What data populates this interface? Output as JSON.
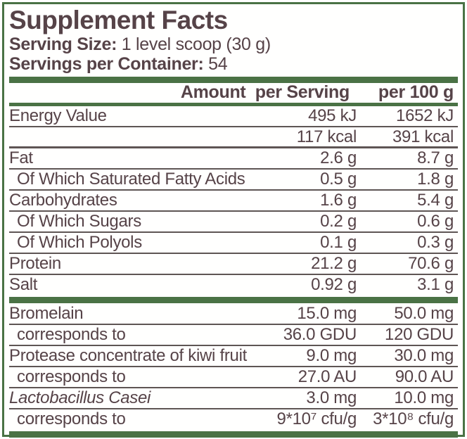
{
  "title": "Supplement Facts",
  "serving": {
    "size_label": "Serving Size:",
    "size_value": " 1 level scoop (30 g)",
    "container_label": "Servings per Container:",
    "container_value": " 54"
  },
  "table": {
    "header": {
      "col1": "Amount  per Serving",
      "col2": "per 100 g"
    },
    "nutrients": [
      {
        "name": "Energy Value",
        "per_serving": "495 kJ",
        "per_100g": "1652 kJ",
        "indent": false,
        "italic": false,
        "sep": "thin"
      },
      {
        "name": "",
        "per_serving": "117 kcal",
        "per_100g": "391 kcal",
        "indent": false,
        "italic": false,
        "sep": "thick"
      },
      {
        "name": "Fat",
        "per_serving": "2.6 g",
        "per_100g": "8.7 g",
        "indent": false,
        "italic": false,
        "sep": "thin"
      },
      {
        "name": "Of Which Saturated Fatty Acids",
        "per_serving": "0.5 g",
        "per_100g": "1.8 g",
        "indent": true,
        "italic": false,
        "sep": "thin"
      },
      {
        "name": "Carbohydrates",
        "per_serving": "1.6 g",
        "per_100g": "5.4 g",
        "indent": false,
        "italic": false,
        "sep": "thin"
      },
      {
        "name": "Of Which Sugars",
        "per_serving": "0.2 g",
        "per_100g": "0.6 g",
        "indent": true,
        "italic": false,
        "sep": "thin"
      },
      {
        "name": "Of Which Polyols",
        "per_serving": "0.1 g",
        "per_100g": "0.3 g",
        "indent": true,
        "italic": false,
        "sep": "thin"
      },
      {
        "name": "Protein",
        "per_serving": "21.2 g",
        "per_100g": "70.6 g",
        "indent": false,
        "italic": false,
        "sep": "thin"
      },
      {
        "name": "Salt",
        "per_serving": "0.92 g",
        "per_100g": "3.1 g",
        "indent": false,
        "italic": false,
        "sep": "none"
      }
    ],
    "actives": [
      {
        "name": "Bromelain",
        "per_serving": "15.0 mg",
        "per_100g": "50.0 mg",
        "indent": false,
        "italic": false,
        "sep": "thin"
      },
      {
        "name": "corresponds to",
        "per_serving": "36.0 GDU",
        "per_100g": "120 GDU",
        "indent": true,
        "italic": false,
        "sep": "thin"
      },
      {
        "name": "Protease concentrate of kiwi fruit",
        "per_serving": "9.0 mg",
        "per_100g": "30.0 mg",
        "indent": false,
        "italic": false,
        "sep": "thin"
      },
      {
        "name": "corresponds to",
        "per_serving": "27.0 AU",
        "per_100g": "90.0 AU",
        "indent": true,
        "italic": false,
        "sep": "thin"
      },
      {
        "name": "Lactobacillus Casei",
        "per_serving": "3.0 mg",
        "per_100g": "10.0 mg",
        "indent": false,
        "italic": true,
        "sep": "thin"
      },
      {
        "name": "corresponds to",
        "per_serving": "9*10⁷ cfu/g",
        "per_100g": "3*10⁸ cfu/g",
        "indent": true,
        "italic": false,
        "sep": "none"
      }
    ]
  },
  "colors": {
    "accent_green": "#4a7245",
    "text_brown": "#564348",
    "separator": "#5e5554"
  }
}
